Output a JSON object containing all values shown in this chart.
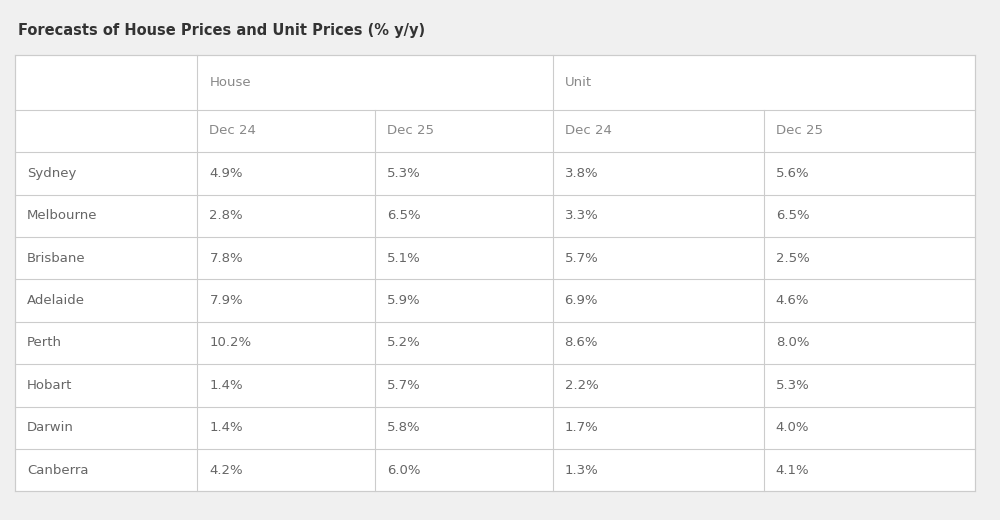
{
  "title": "Forecasts of House Prices and Unit Prices (% y/y)",
  "title_fontsize": 10.5,
  "title_color": "#333333",
  "background_color": "#f0f0f0",
  "table_background": "#ffffff",
  "border_color": "#cccccc",
  "text_color": "#666666",
  "col_header_color": "#888888",
  "group_headers": [
    "House",
    "Unit"
  ],
  "sub_headers": [
    "Dec 24",
    "Dec 25",
    "Dec 24",
    "Dec 25"
  ],
  "cities": [
    "Sydney",
    "Melbourne",
    "Brisbane",
    "Adelaide",
    "Perth",
    "Hobart",
    "Darwin",
    "Canberra"
  ],
  "data": [
    [
      "4.9%",
      "5.3%",
      "3.8%",
      "5.6%"
    ],
    [
      "2.8%",
      "6.5%",
      "3.3%",
      "6.5%"
    ],
    [
      "7.8%",
      "5.1%",
      "5.7%",
      "2.5%"
    ],
    [
      "7.9%",
      "5.9%",
      "6.9%",
      "4.6%"
    ],
    [
      "10.2%",
      "5.2%",
      "8.6%",
      "8.0%"
    ],
    [
      "1.4%",
      "5.7%",
      "2.2%",
      "5.3%"
    ],
    [
      "1.4%",
      "5.8%",
      "1.7%",
      "4.0%"
    ],
    [
      "4.2%",
      "6.0%",
      "1.3%",
      "4.1%"
    ]
  ],
  "font_size": 9.5
}
